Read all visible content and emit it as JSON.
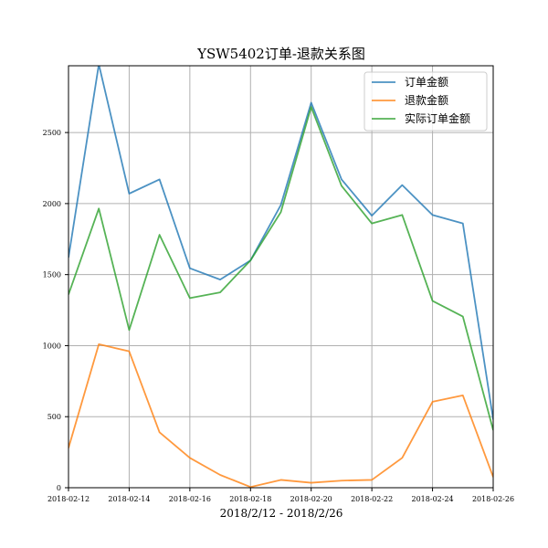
{
  "chart_data": {
    "type": "line",
    "title": "YSW5402订单-退款关系图",
    "xlabel": "2018/2/12 - 2018/2/26",
    "ylabel": "",
    "x": [
      "2018-02-12",
      "2018-02-13",
      "2018-02-14",
      "2018-02-15",
      "2018-02-16",
      "2018-02-17",
      "2018-02-18",
      "2018-02-19",
      "2018-02-20",
      "2018-02-21",
      "2018-02-22",
      "2018-02-23",
      "2018-02-24",
      "2018-02-25",
      "2018-02-26"
    ],
    "xticks": [
      "2018-02-12",
      "2018-02-14",
      "2018-02-16",
      "2018-02-18",
      "2018-02-20",
      "2018-02-22",
      "2018-02-24",
      "2018-02-26"
    ],
    "yticks": [
      0,
      500,
      1000,
      1500,
      2000,
      2500
    ],
    "ylim": [
      0,
      2970
    ],
    "grid": true,
    "legend_position": "top-right",
    "series": [
      {
        "name": "订单金额",
        "color": "#1f77b4",
        "values": [
          1620,
          2980,
          2070,
          2170,
          1545,
          1465,
          1600,
          1990,
          2710,
          2170,
          1915,
          2130,
          1920,
          1860,
          480
        ]
      },
      {
        "name": "退款金额",
        "color": "#ff7f0e",
        "values": [
          280,
          1010,
          960,
          390,
          210,
          90,
          5,
          55,
          35,
          50,
          55,
          210,
          605,
          650,
          75
        ]
      },
      {
        "name": "实际订单金额",
        "color": "#2ca02c",
        "values": [
          1360,
          1965,
          1110,
          1780,
          1335,
          1375,
          1600,
          1940,
          2680,
          2125,
          1860,
          1920,
          1315,
          1205,
          405
        ]
      }
    ]
  }
}
